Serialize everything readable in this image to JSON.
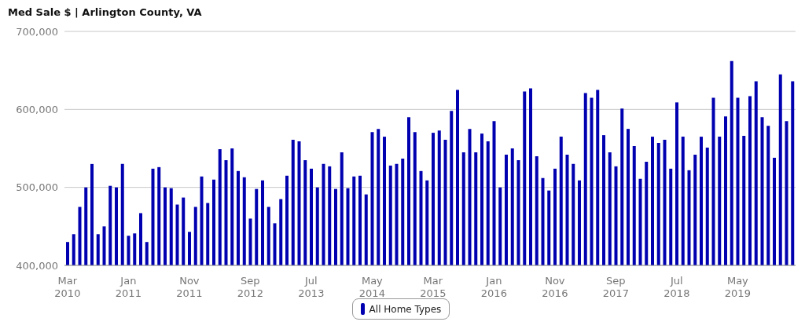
{
  "chart_data": {
    "type": "bar",
    "title": "Med Sale $ | Arlington County, VA",
    "categories": [
      "Mar 2010",
      null,
      null,
      null,
      null,
      null,
      null,
      null,
      null,
      null,
      "Jan 2011",
      null,
      null,
      null,
      null,
      null,
      null,
      null,
      null,
      null,
      "Nov 2011",
      null,
      null,
      null,
      null,
      null,
      null,
      null,
      null,
      null,
      "Sep 2012",
      null,
      null,
      null,
      null,
      null,
      null,
      null,
      null,
      null,
      "Jul 2013",
      null,
      null,
      null,
      null,
      null,
      null,
      null,
      null,
      null,
      "May 2014",
      null,
      null,
      null,
      null,
      null,
      null,
      null,
      null,
      null,
      "Mar 2015",
      null,
      null,
      null,
      null,
      null,
      null,
      null,
      null,
      null,
      "Jan 2016",
      null,
      null,
      null,
      null,
      null,
      null,
      null,
      null,
      null,
      "Nov 2016",
      null,
      null,
      null,
      null,
      null,
      null,
      null,
      null,
      null,
      "Sep 2017",
      null,
      null,
      null,
      null,
      null,
      null,
      null,
      null,
      null,
      "Jul 2018",
      null,
      null,
      null,
      null,
      null,
      null,
      null,
      null,
      null,
      "May 2019",
      null,
      null,
      null,
      null,
      null,
      null,
      null,
      null,
      null
    ],
    "series": [
      {
        "name": "All Home Types",
        "color": "#0000b0",
        "values": [
          430000,
          440000,
          475000,
          500000,
          530000,
          440000,
          450000,
          502000,
          500000,
          530000,
          438000,
          441000,
          467000,
          430000,
          524000,
          526000,
          500000,
          499000,
          478000,
          487000,
          443000,
          475000,
          514000,
          480000,
          510000,
          549000,
          535000,
          550000,
          521000,
          513000,
          460000,
          498000,
          509000,
          475000,
          454000,
          485000,
          515000,
          561000,
          559000,
          535000,
          524000,
          500000,
          530000,
          527000,
          498000,
          545000,
          499000,
          514000,
          515000,
          491000,
          571000,
          575000,
          565000,
          528000,
          530000,
          537000,
          590000,
          571000,
          521000,
          509000,
          570000,
          573000,
          561000,
          598000,
          625000,
          545000,
          575000,
          545000,
          569000,
          559000,
          585000,
          500000,
          542000,
          550000,
          535000,
          623000,
          627000,
          540000,
          512000,
          496000,
          524000,
          565000,
          542000,
          530000,
          509000,
          621000,
          615000,
          625000,
          567000,
          545000,
          527000,
          601000,
          575000,
          553000,
          511000,
          533000,
          565000,
          557000,
          561000,
          524000,
          609000,
          565000,
          522000,
          542000,
          565000,
          551000,
          615000,
          565000,
          591000,
          662000,
          615000,
          566000,
          617000,
          636000,
          590000,
          579000,
          538000,
          645000,
          585000,
          636000
        ]
      }
    ],
    "ylim": [
      400000,
      700000
    ],
    "yticks": [
      {
        "value": 400000,
        "label": "400,000"
      },
      {
        "value": 500000,
        "label": "500,000"
      },
      {
        "value": 600000,
        "label": "600,000"
      },
      {
        "value": 700000,
        "label": "700,000"
      }
    ],
    "grid": "y",
    "legend": "bottom"
  }
}
